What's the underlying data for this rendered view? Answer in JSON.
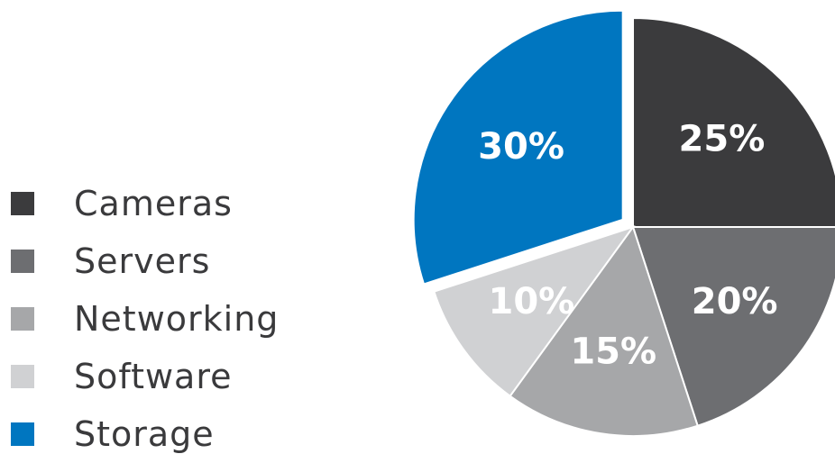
{
  "chart_data": {
    "type": "pie",
    "title": "",
    "slices": [
      {
        "name": "Cameras",
        "value": 25,
        "label": "25%",
        "color": "#3b3b3d"
      },
      {
        "name": "Servers",
        "value": 20,
        "label": "20%",
        "color": "#6d6e71"
      },
      {
        "name": "Networking",
        "value": 15,
        "label": "15%",
        "color": "#a6a7a9"
      },
      {
        "name": "Software",
        "value": 10,
        "label": "10%",
        "color": "#d0d1d3"
      },
      {
        "name": "Storage",
        "value": 30,
        "label": "30%",
        "color": "#0076c0",
        "exploded": true
      }
    ],
    "legend_position": "left"
  }
}
